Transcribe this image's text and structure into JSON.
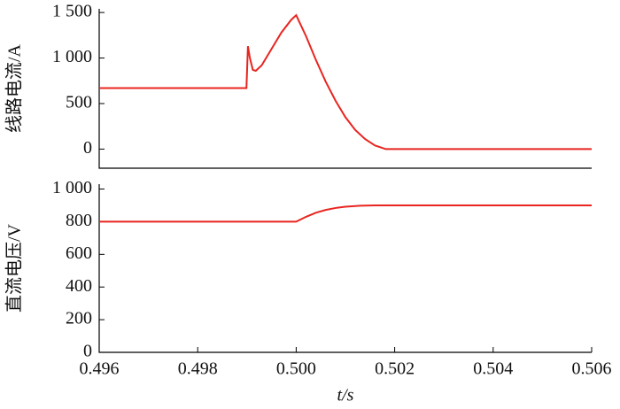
{
  "chart_data": [
    {
      "type": "line",
      "ylabel": "线路电流/A",
      "x": [
        0.496,
        0.49899,
        0.49902,
        0.49906,
        0.49912,
        0.49918,
        0.4993,
        0.4995,
        0.4997,
        0.4999,
        0.5,
        0.5002,
        0.5004,
        0.5006,
        0.5008,
        0.501,
        0.5012,
        0.5014,
        0.5016,
        0.50182,
        0.506
      ],
      "series": [
        {
          "color": "#e8251f",
          "values": [
            670,
            670,
            1130,
            1000,
            870,
            860,
            920,
            1100,
            1280,
            1420,
            1470,
            1240,
            980,
            740,
            530,
            350,
            210,
            110,
            40,
            0,
            0
          ]
        }
      ],
      "xlim": [
        0.496,
        0.506
      ],
      "ylim": [
        -210,
        1540
      ],
      "yticks": [
        0,
        500,
        {
          "value": 1000,
          "label": "1 000"
        },
        {
          "value": 1500,
          "label": "1 500"
        }
      ]
    },
    {
      "type": "line",
      "ylabel": "直流电压/V",
      "xlabel": "t/s",
      "x": [
        0.496,
        0.5,
        0.5002,
        0.5004,
        0.5006,
        0.5008,
        0.501,
        0.5013,
        0.5016,
        0.506
      ],
      "series": [
        {
          "color": "#e8251f",
          "values": [
            800,
            800,
            830,
            855,
            872,
            884,
            892,
            898,
            900,
            900
          ]
        }
      ],
      "xlim": [
        0.496,
        0.506
      ],
      "ylim": [
        0,
        1030
      ],
      "yticks": [
        0,
        200,
        400,
        600,
        800,
        {
          "value": 1000,
          "label": "1 000"
        }
      ],
      "xticks": [
        0.496,
        0.498,
        {
          "value": 0.5,
          "label": "0.500"
        },
        0.502,
        0.504,
        0.506
      ]
    }
  ]
}
